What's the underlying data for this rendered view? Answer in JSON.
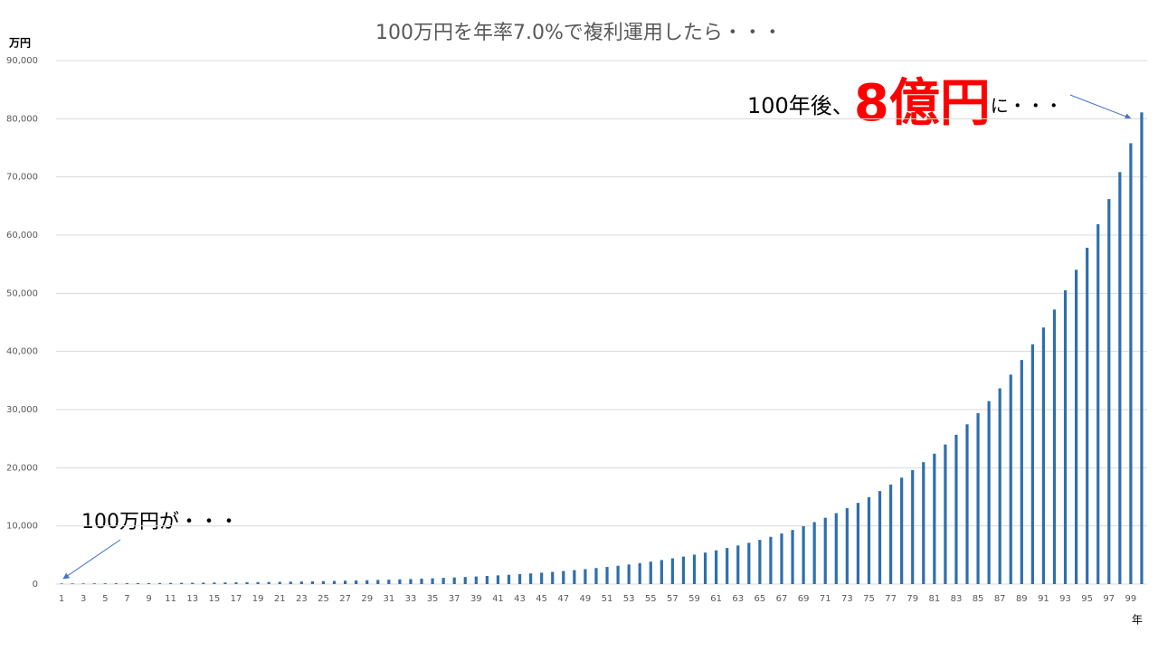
{
  "chart_data": {
    "type": "bar",
    "title": "100万円を年率7.0%で複利運用したら・・・",
    "y_axis_label": "万円",
    "x_axis_label": "年",
    "annotations": {
      "start": "100万円が・・・",
      "end_prefix": "100年後、",
      "end_highlight": "8億円",
      "end_suffix": "に・・・"
    },
    "categories": [
      1,
      null,
      3,
      null,
      5,
      null,
      7,
      null,
      9,
      null,
      11,
      null,
      13,
      null,
      15,
      null,
      17,
      null,
      19,
      null,
      21,
      null,
      23,
      null,
      25,
      null,
      27,
      null,
      29,
      null,
      31,
      null,
      33,
      null,
      35,
      null,
      37,
      null,
      39,
      null,
      41,
      null,
      43,
      null,
      45,
      null,
      47,
      null,
      49,
      null,
      51,
      null,
      53,
      null,
      55,
      null,
      57,
      null,
      59,
      null,
      61,
      null,
      63,
      null,
      65,
      null,
      67,
      null,
      69,
      null,
      71,
      null,
      73,
      null,
      75,
      null,
      77,
      null,
      79,
      null,
      81,
      null,
      83,
      null,
      85,
      null,
      87,
      null,
      89,
      null,
      91,
      null,
      93,
      null,
      95,
      null,
      97,
      null,
      99,
      null
    ],
    "values": [
      100,
      107,
      114,
      123,
      131,
      140,
      150,
      161,
      172,
      184,
      197,
      210,
      225,
      241,
      258,
      276,
      295,
      316,
      338,
      362,
      387,
      414,
      443,
      474,
      507,
      543,
      581,
      621,
      665,
      711,
      761,
      815,
      872,
      933,
      998,
      1068,
      1142,
      1222,
      1308,
      1399,
      1497,
      1602,
      1714,
      1834,
      1963,
      2100,
      2247,
      2405,
      2573,
      2753,
      2946,
      3152,
      3373,
      3609,
      3861,
      4131,
      4421,
      4730,
      5061,
      5416,
      5795,
      6200,
      6634,
      7099,
      7596,
      8127,
      8696,
      9305,
      9956,
      10653,
      11399,
      12197,
      13051,
      13964,
      14942,
      15988,
      17107,
      18304,
      19586,
      20956,
      22423,
      23993,
      25673,
      27470,
      29393,
      31450,
      33652,
      36007,
      38528,
      41225,
      44110,
      47198,
      50502,
      54037,
      57820,
      61866,
      66197,
      70831,
      75789,
      81094
    ],
    "color": "#2e6fad",
    "highlight_color": "#ff0000",
    "ylim": [
      0,
      90000
    ],
    "yticks": [
      0,
      {
        "value": 10000,
        "label": "10,000"
      },
      {
        "value": 20000,
        "label": "20,000"
      },
      {
        "value": 30000,
        "label": "30,000"
      },
      {
        "value": 40000,
        "label": "40,000"
      },
      {
        "value": 50000,
        "label": "50,000"
      },
      {
        "value": 60000,
        "label": "60,000"
      },
      {
        "value": 70000,
        "label": "70,000"
      },
      {
        "value": 80000,
        "label": "80,000"
      },
      {
        "value": 90000,
        "label": "90,000"
      }
    ],
    "grid": true
  }
}
